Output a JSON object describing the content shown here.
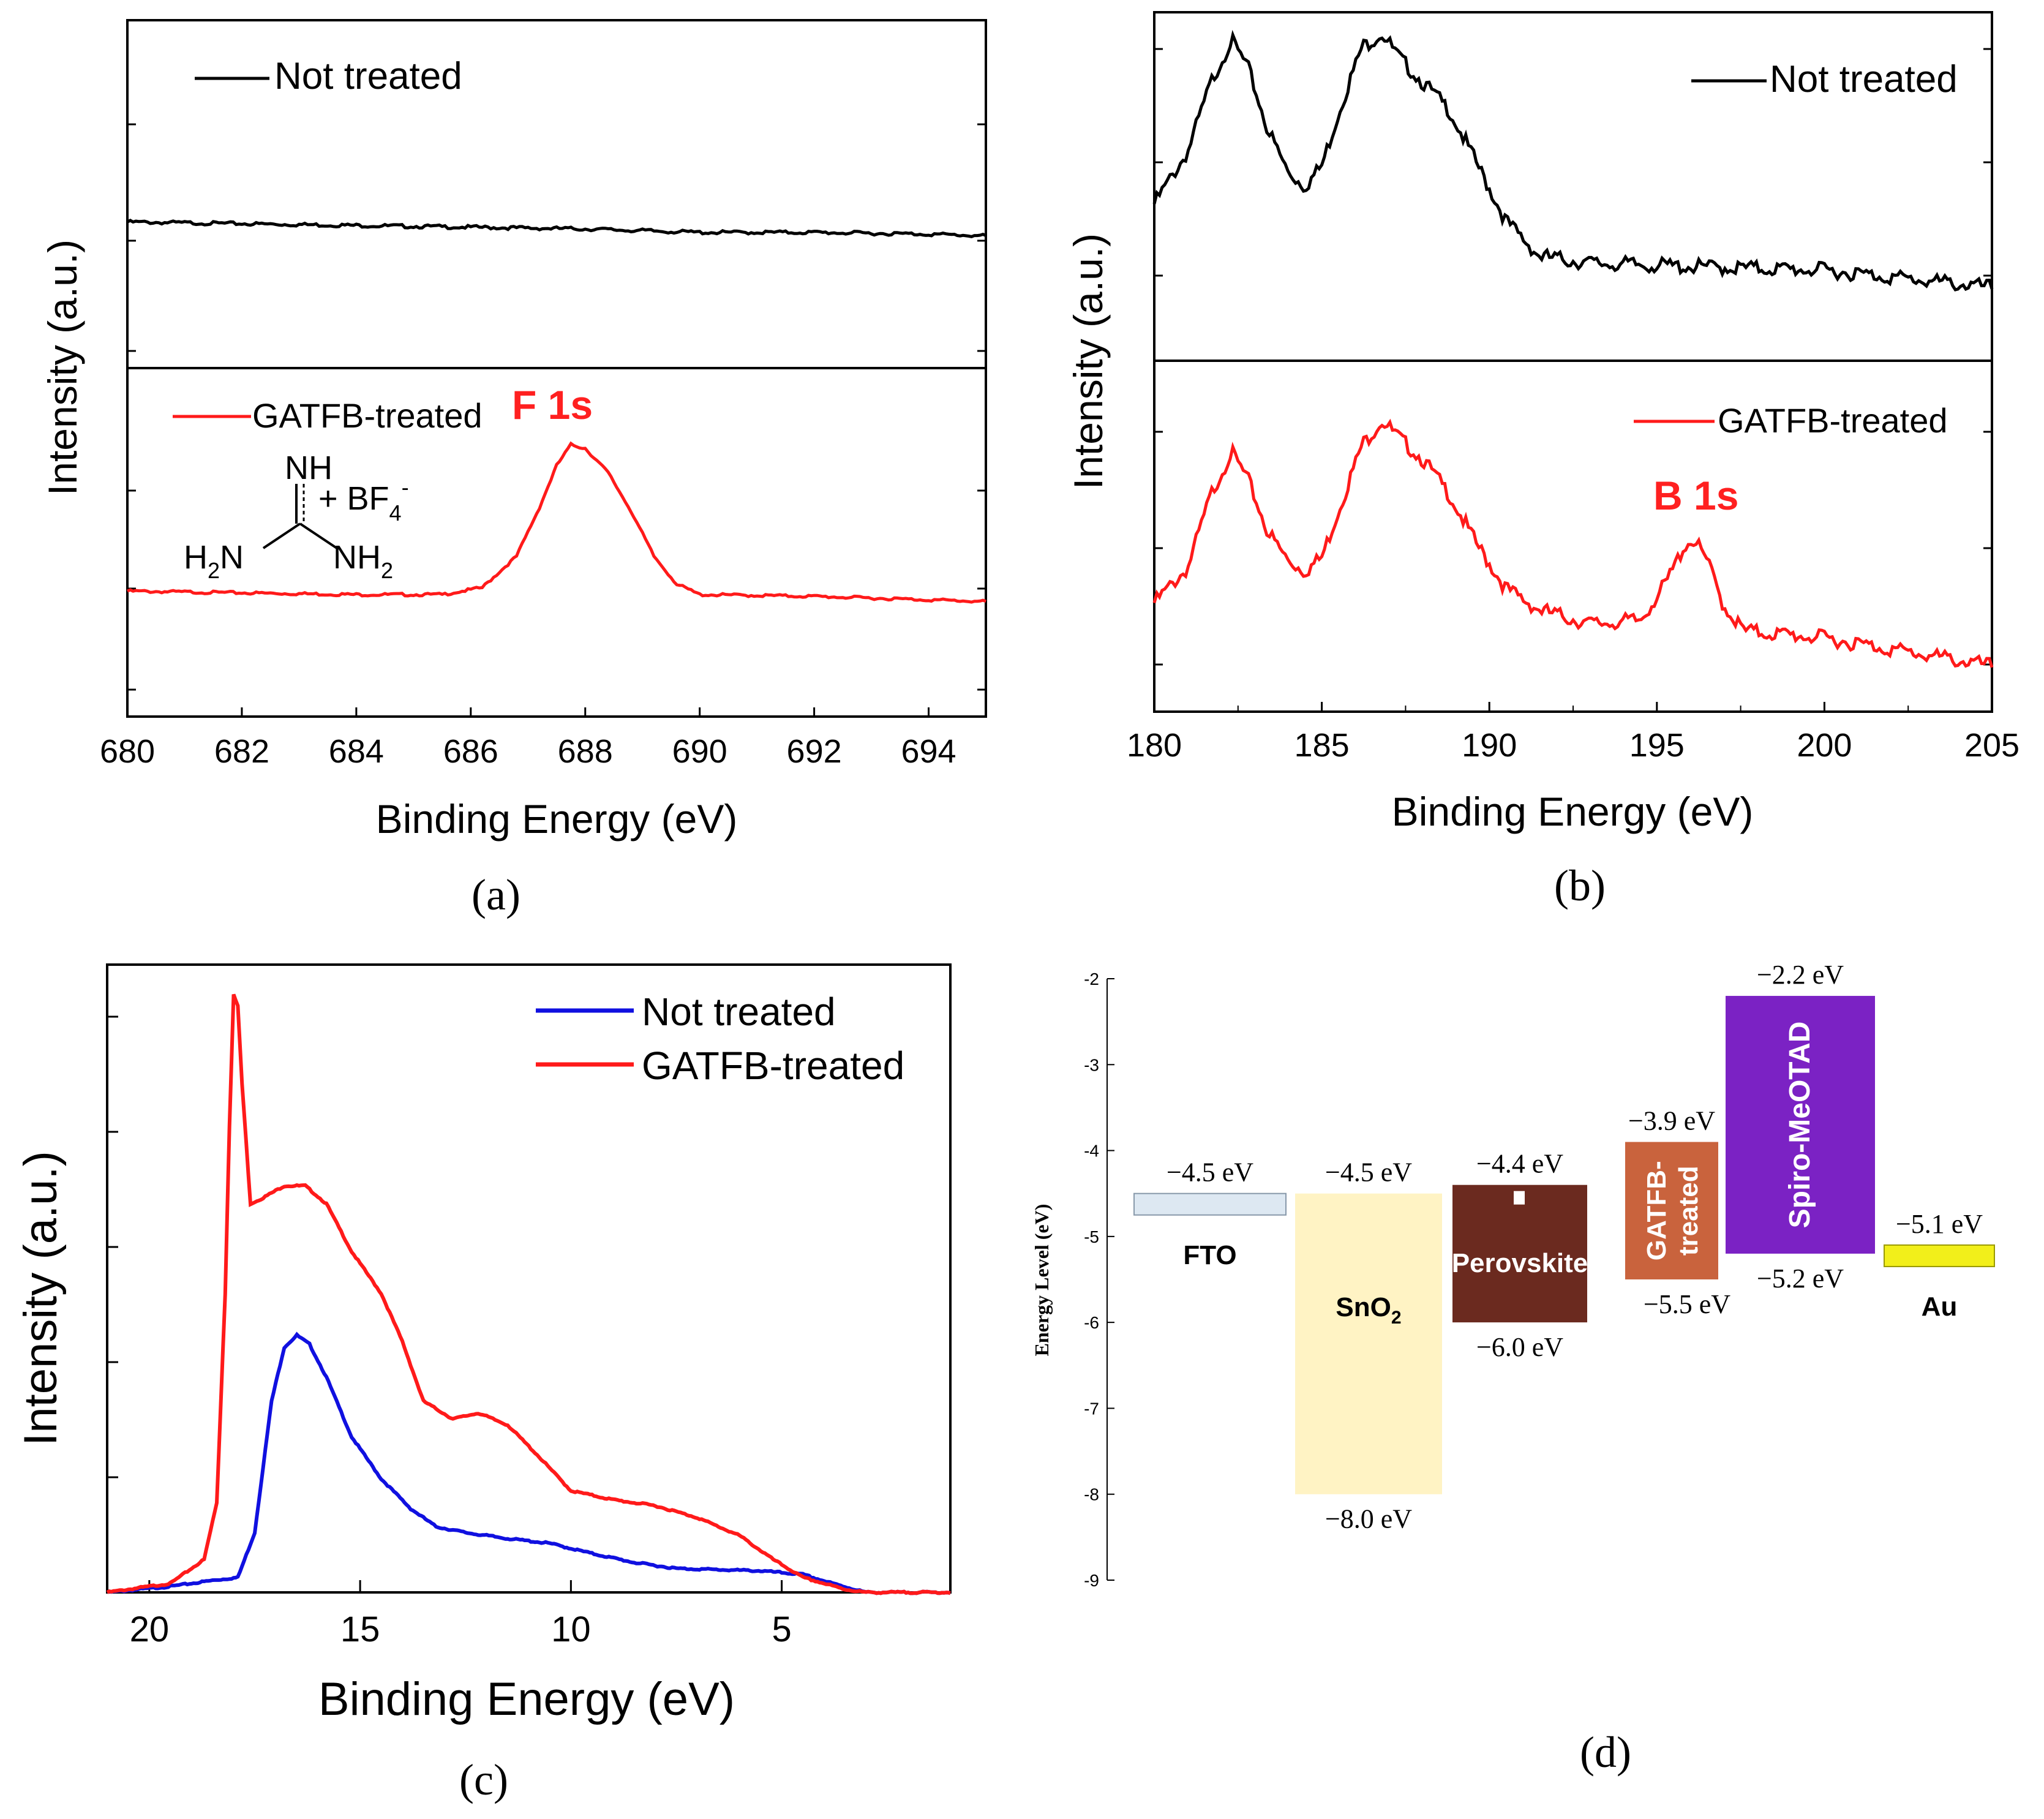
{
  "colors": {
    "black_series": "#000000",
    "red_series": "#ff1a1a",
    "blue_series": "#1010e0",
    "label_red": "#ff2020"
  },
  "chart_data": [
    {
      "id": "a",
      "type": "line",
      "caption": "(a)",
      "xlabel": "Binding Energy (eV)",
      "ylabel": "Intensity (a.u.)",
      "xlim": [
        680,
        695
      ],
      "xticks": [
        680,
        682,
        684,
        686,
        688,
        690,
        692,
        694
      ],
      "panels": [
        {
          "legend": "Not treated",
          "color": "#000000",
          "ylim": [
            0,
            10
          ],
          "x": [
            680,
            684,
            688,
            690,
            692,
            694,
            695
          ],
          "y": [
            4.2,
            4.1,
            4.0,
            3.9,
            3.9,
            3.85,
            3.8
          ]
        },
        {
          "legend": "GATFB-treated",
          "color": "#ff1a1a",
          "ylim": [
            0,
            10
          ],
          "annotation": "F 1s",
          "x": [
            680,
            684,
            685.5,
            686.2,
            686.8,
            687.2,
            687.5,
            687.75,
            688.0,
            688.4,
            688.8,
            689.2,
            689.6,
            690,
            692,
            695
          ],
          "y": [
            3.6,
            3.5,
            3.5,
            3.7,
            4.6,
            6.0,
            7.2,
            7.8,
            7.7,
            7.0,
            5.9,
            4.6,
            3.8,
            3.5,
            3.45,
            3.3
          ]
        }
      ],
      "inset_text": {
        "nh": "NH",
        "plus": "+ BF",
        "sub4": "4",
        "sup": "-",
        "h": "H",
        "n2": "N",
        "nh_right": "NH",
        "sub2": "2"
      }
    },
    {
      "id": "b",
      "type": "line",
      "caption": "(b)",
      "xlabel": "Binding Energy (eV)",
      "ylabel": "Intensity (a.u.)",
      "xlim": [
        180,
        205
      ],
      "xticks": [
        180,
        185,
        190,
        195,
        200,
        205
      ],
      "panels": [
        {
          "legend": "Not treated",
          "color": "#000000",
          "ylim": [
            0,
            10
          ],
          "x": [
            180,
            181,
            181.7,
            182.3,
            182.8,
            183.4,
            184,
            184.5,
            185,
            185.6,
            186.2,
            186.8,
            187.3,
            188,
            188.8,
            189.6,
            190.5,
            191.5,
            193,
            196,
            200,
            205
          ],
          "y": [
            4.5,
            6.0,
            8.0,
            9.2,
            8.4,
            6.6,
            5.4,
            5.0,
            5.6,
            7.4,
            9.0,
            9.4,
            8.7,
            8.0,
            7.2,
            5.7,
            4.0,
            3.0,
            2.8,
            2.7,
            2.6,
            2.1
          ]
        },
        {
          "legend": "GATFB-treated",
          "color": "#ff1a1a",
          "ylim": [
            0,
            10
          ],
          "annotation": "B 1s",
          "x": [
            180,
            181,
            181.7,
            182.3,
            182.8,
            183.4,
            184,
            184.5,
            185,
            185.6,
            186.2,
            186.8,
            187.3,
            188,
            188.8,
            189.6,
            190.5,
            191.5,
            193,
            194.5,
            195.3,
            195.8,
            196.1,
            196.5,
            197,
            197.6,
            200,
            205
          ],
          "y": [
            3.1,
            4.1,
            6.2,
            7.4,
            6.6,
            5.1,
            4.3,
            4.0,
            4.4,
            6.0,
            7.6,
            8.3,
            7.8,
            7.2,
            6.2,
            4.8,
            3.5,
            2.9,
            2.5,
            2.6,
            3.7,
            4.7,
            4.9,
            4.3,
            3.0,
            2.3,
            2.1,
            1.3
          ]
        }
      ]
    },
    {
      "id": "c",
      "type": "line",
      "caption": "(c)",
      "xlabel": "Binding Energy (eV)",
      "ylabel": "Intensity (a.u.)",
      "xlim": [
        21,
        1
      ],
      "xticks": [
        20,
        15,
        10,
        5
      ],
      "ylim": [
        0,
        10.5
      ],
      "series": [
        {
          "name": "Not treated",
          "color": "#1010e0",
          "x": [
            21,
            19.5,
            18.5,
            17.9,
            17.5,
            17.1,
            16.8,
            16.5,
            16.2,
            15.8,
            15.2,
            14.5,
            13.8,
            13.2,
            12.5,
            11.5,
            10.5,
            9.5,
            8.5,
            7.5,
            6.5,
            5.5,
            4.5,
            3.8,
            3.0,
            1
          ],
          "y": [
            0,
            0.1,
            0.2,
            0.25,
            1.0,
            3.2,
            4.1,
            4.3,
            4.15,
            3.6,
            2.6,
            1.9,
            1.4,
            1.1,
            1.0,
            0.9,
            0.82,
            0.65,
            0.5,
            0.4,
            0.38,
            0.36,
            0.3,
            0.15,
            0,
            0
          ]
        },
        {
          "name": "GATFB-treated",
          "color": "#ff1a1a",
          "x": [
            21,
            19.5,
            18.7,
            18.4,
            18.2,
            18.1,
            18.0,
            17.9,
            17.8,
            17.6,
            17.3,
            16.8,
            16.3,
            15.8,
            15.2,
            14.5,
            14.0,
            13.5,
            12.8,
            12.2,
            11.5,
            10.8,
            10.0,
            9.0,
            8.0,
            7.0,
            6.0,
            5.2,
            4.5,
            3.5,
            3.0,
            1
          ],
          "y": [
            0,
            0.15,
            0.55,
            1.5,
            5.0,
            7.8,
            10.0,
            9.8,
            8.5,
            6.5,
            6.6,
            6.8,
            6.8,
            6.5,
            5.7,
            5.0,
            4.2,
            3.2,
            2.9,
            3.0,
            2.8,
            2.3,
            1.7,
            1.55,
            1.45,
            1.25,
            0.95,
            0.55,
            0.25,
            0.05,
            0,
            0
          ]
        }
      ]
    },
    {
      "id": "d",
      "type": "energy-level-diagram",
      "caption": "(d)",
      "ylabel": "Energy Level (eV)",
      "ylim": [
        -9,
        -2
      ],
      "yticks": [
        "-2",
        "-3",
        "-4",
        "-5",
        "-6",
        "-7",
        "-8",
        "-9"
      ],
      "layers": [
        {
          "name": "FTO",
          "top": -4.5,
          "bottom": -4.75,
          "color": "#dde8f2",
          "top_label": "−4.5 eV",
          "bottom_label": ""
        },
        {
          "name": "SnO",
          "name_sub": "2",
          "top": -4.5,
          "bottom": -8.0,
          "color": "#fff3c4",
          "top_label": "−4.5 eV",
          "bottom_label": "−8.0 eV"
        },
        {
          "name": "Perovskite",
          "top": -4.4,
          "bottom": -6.0,
          "color": "#6b2a1f",
          "top_label": "−4.4 eV",
          "bottom_label": "−6.0 eV"
        },
        {
          "name": "GATFB-",
          "name2": "treated",
          "top": -3.9,
          "bottom": -5.5,
          "color": "#c9633d",
          "top_label": "−3.9 eV",
          "bottom_label": "−5.5 eV"
        },
        {
          "name": "Spiro-MeOTAD",
          "top": -2.2,
          "bottom": -5.2,
          "color": "#7b22c4",
          "top_label": "−2.2 eV",
          "bottom_label": "−5.2 eV"
        },
        {
          "name": "Au",
          "top": -5.1,
          "bottom": -5.35,
          "color": "#f2ef1a",
          "top_label": "−5.1 eV",
          "bottom_label": ""
        }
      ]
    }
  ]
}
